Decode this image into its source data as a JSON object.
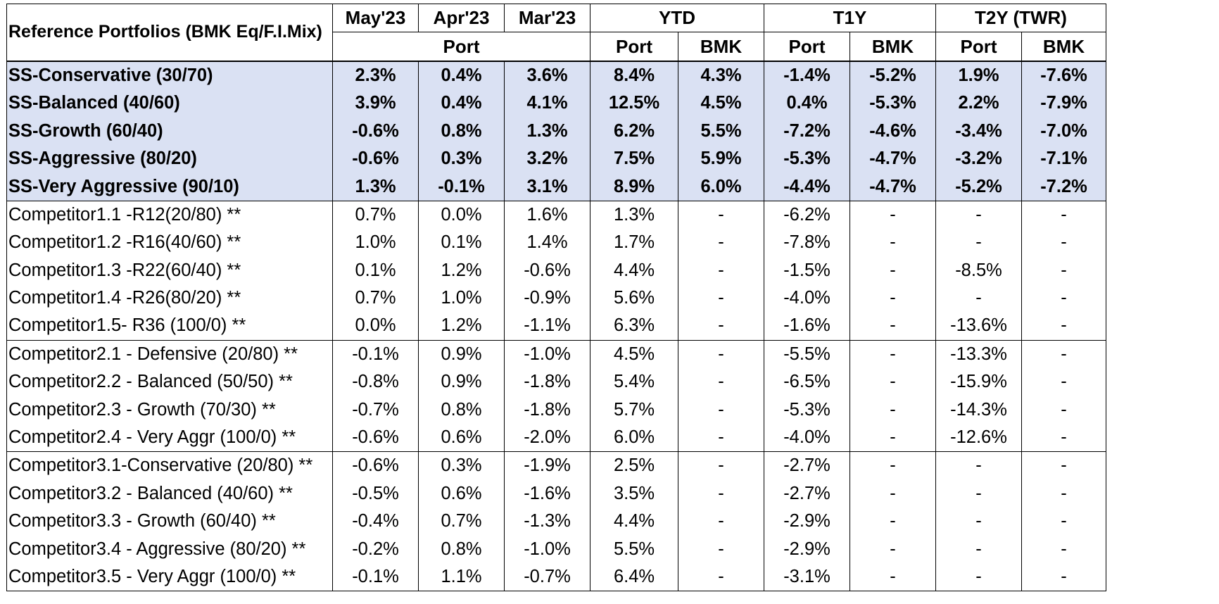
{
  "header": {
    "title": "Reference Portfolios (BMK Eq/F.I.Mix)",
    "months": [
      "May'23",
      "Apr'23",
      "Mar'23"
    ],
    "port_label": "Port",
    "ytd": "YTD",
    "t1y": "T1Y",
    "t2y": "T2Y (TWR)",
    "sub_port": "Port",
    "sub_bmk": "BMK"
  },
  "ss_rows": [
    {
      "name": "SS-Conservative (30/70)",
      "values": [
        "2.3%",
        "0.4%",
        "3.6%",
        "8.4%",
        "4.3%",
        "-1.4%",
        "-5.2%",
        "1.9%",
        "-7.6%"
      ]
    },
    {
      "name": "SS-Balanced (40/60)",
      "values": [
        "3.9%",
        "0.4%",
        "4.1%",
        "12.5%",
        "4.5%",
        "0.4%",
        "-5.3%",
        "2.2%",
        "-7.9%"
      ]
    },
    {
      "name": "SS-Growth (60/40)",
      "values": [
        "-0.6%",
        "0.8%",
        "1.3%",
        "6.2%",
        "5.5%",
        "-7.2%",
        "-4.6%",
        "-3.4%",
        "-7.0%"
      ]
    },
    {
      "name": "SS-Aggressive (80/20)",
      "values": [
        "-0.6%",
        "0.3%",
        "3.2%",
        "7.5%",
        "5.9%",
        "-5.3%",
        "-4.7%",
        "-3.2%",
        "-7.1%"
      ]
    },
    {
      "name": "SS-Very Aggressive (90/10)",
      "values": [
        "1.3%",
        "-0.1%",
        "3.1%",
        "8.9%",
        "6.0%",
        "-4.4%",
        "-4.7%",
        "-5.2%",
        "-7.2%"
      ]
    }
  ],
  "competitor_groups": [
    [
      {
        "name": "Competitor1.1 -R12(20/80) **",
        "values": [
          "0.7%",
          "0.0%",
          "1.6%",
          "1.3%",
          "-",
          "-6.2%",
          "-",
          "-",
          "-"
        ]
      },
      {
        "name": "Competitor1.2 -R16(40/60) **",
        "values": [
          "1.0%",
          "0.1%",
          "1.4%",
          "1.7%",
          "-",
          "-7.8%",
          "-",
          "-",
          "-"
        ]
      },
      {
        "name": "Competitor1.3 -R22(60/40) **",
        "values": [
          "0.1%",
          "1.2%",
          "-0.6%",
          "4.4%",
          "-",
          "-1.5%",
          "-",
          "-8.5%",
          "-"
        ]
      },
      {
        "name": "Competitor1.4 -R26(80/20) **",
        "values": [
          "0.7%",
          "1.0%",
          "-0.9%",
          "5.6%",
          "-",
          "-4.0%",
          "-",
          "-",
          "-"
        ]
      },
      {
        "name": "Competitor1.5- R36 (100/0) **",
        "values": [
          "0.0%",
          "1.2%",
          "-1.1%",
          "6.3%",
          "-",
          "-1.6%",
          "-",
          "-13.6%",
          "-"
        ]
      }
    ],
    [
      {
        "name": "Competitor2.1  - Defensive  (20/80) **",
        "values": [
          "-0.1%",
          "0.9%",
          "-1.0%",
          "4.5%",
          "-",
          "-5.5%",
          "-",
          "-13.3%",
          "-"
        ]
      },
      {
        "name": "Competitor2.2  - Balanced (50/50) **",
        "values": [
          "-0.8%",
          "0.9%",
          "-1.8%",
          "5.4%",
          "-",
          "-6.5%",
          "-",
          "-15.9%",
          "-"
        ]
      },
      {
        "name": "Competitor2.3  - Growth  (70/30) **",
        "values": [
          "-0.7%",
          "0.8%",
          "-1.8%",
          "5.7%",
          "-",
          "-5.3%",
          "-",
          "-14.3%",
          "-"
        ]
      },
      {
        "name": "Competitor2.4  - Very Aggr  (100/0) **",
        "values": [
          "-0.6%",
          "0.6%",
          "-2.0%",
          "6.0%",
          "-",
          "-4.0%",
          "-",
          "-12.6%",
          "-"
        ]
      }
    ],
    [
      {
        "name": "Competitor3.1-Conservative (20/80) **",
        "values": [
          "-0.6%",
          "0.3%",
          "-1.9%",
          "2.5%",
          "-",
          "-2.7%",
          "-",
          "-",
          "-"
        ]
      },
      {
        "name": "Competitor3.2 - Balanced  (40/60) **",
        "values": [
          "-0.5%",
          "0.6%",
          "-1.6%",
          "3.5%",
          "-",
          "-2.7%",
          "-",
          "-",
          "-"
        ]
      },
      {
        "name": "Competitor3.3 - Growth  (60/40) **",
        "values": [
          "-0.4%",
          "0.7%",
          "-1.3%",
          "4.4%",
          "-",
          "-2.9%",
          "-",
          "-",
          "-"
        ]
      },
      {
        "name": "Competitor3.4 - Aggressive  (80/20) **",
        "values": [
          "-0.2%",
          "0.8%",
          "-1.0%",
          "5.5%",
          "-",
          "-2.9%",
          "-",
          "-",
          "-"
        ]
      },
      {
        "name": "Competitor3.5  - Very Aggr (100/0) **",
        "values": [
          "-0.1%",
          "1.1%",
          "-0.7%",
          "6.4%",
          "-",
          "-3.1%",
          "-",
          "-",
          "-"
        ]
      }
    ]
  ],
  "colors": {
    "ss_row_bg": "#dae1f3",
    "border": "#000000"
  }
}
